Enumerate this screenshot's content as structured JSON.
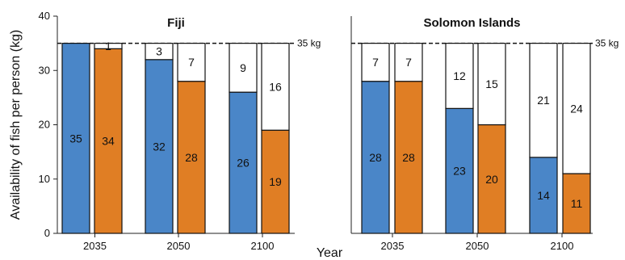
{
  "chart_data": {
    "type": "bar",
    "stacked": true,
    "ylabel": "Availability of fish per person (kg)",
    "xlabel": "Year",
    "ylim": [
      0,
      40
    ],
    "yticks": [
      0,
      10,
      20,
      30,
      40
    ],
    "categories": [
      "2035",
      "2050",
      "2100"
    ],
    "reference_line": {
      "value": 35,
      "label": "35 kg",
      "style": "dashed"
    },
    "colors": {
      "blue": "#4a86c8",
      "orange": "#e07e24",
      "gap": "#ffffff",
      "outline": "#111111"
    },
    "panels": [
      {
        "title": "Fiji",
        "bars": [
          {
            "category": "2035",
            "color": "blue",
            "value": 35,
            "gap": 0
          },
          {
            "category": "2035",
            "color": "orange",
            "value": 34,
            "gap": 1
          },
          {
            "category": "2050",
            "color": "blue",
            "value": 32,
            "gap": 3
          },
          {
            "category": "2050",
            "color": "orange",
            "value": 28,
            "gap": 7
          },
          {
            "category": "2100",
            "color": "blue",
            "value": 26,
            "gap": 9
          },
          {
            "category": "2100",
            "color": "orange",
            "value": 19,
            "gap": 16
          }
        ]
      },
      {
        "title": "Solomon Islands",
        "bars": [
          {
            "category": "2035",
            "color": "blue",
            "value": 28,
            "gap": 7
          },
          {
            "category": "2035",
            "color": "orange",
            "value": 28,
            "gap": 7
          },
          {
            "category": "2050",
            "color": "blue",
            "value": 23,
            "gap": 12
          },
          {
            "category": "2050",
            "color": "orange",
            "value": 20,
            "gap": 15
          },
          {
            "category": "2100",
            "color": "blue",
            "value": 14,
            "gap": 21
          },
          {
            "category": "2100",
            "color": "orange",
            "value": 11,
            "gap": 24
          }
        ]
      }
    ]
  }
}
